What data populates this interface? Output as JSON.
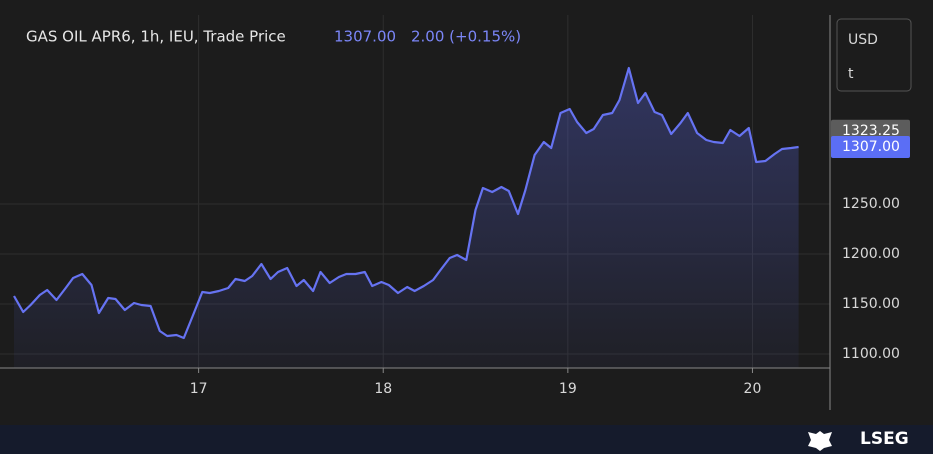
{
  "chart_data": {
    "type": "line",
    "title": "GAS OIL APR6, 1h, IEU, Trade Price",
    "change": "2.00 (+0.15%)",
    "units": [
      "USD",
      "t"
    ],
    "logo": "LSEG",
    "color": "#6673f2",
    "x": [
      16.0,
      16.05,
      16.09,
      16.14,
      16.18,
      16.23,
      16.28,
      16.32,
      16.37,
      16.42,
      16.46,
      16.51,
      16.55,
      16.6,
      16.65,
      16.69,
      16.74,
      16.79,
      16.83,
      16.88,
      16.92,
      16.97,
      17.02,
      17.06,
      17.11,
      17.16,
      17.2,
      17.25,
      17.29,
      17.34,
      17.39,
      17.43,
      17.48,
      17.53,
      17.57,
      17.62,
      17.66,
      17.71,
      17.76,
      17.8,
      17.85,
      17.9,
      17.94,
      17.99,
      18.03,
      18.08,
      18.13,
      18.17,
      18.22,
      18.27,
      18.31,
      18.36,
      18.4,
      18.45,
      18.5,
      18.54,
      18.59,
      18.64,
      18.68,
      18.73,
      18.77,
      18.82,
      18.87,
      18.91,
      18.96,
      19.01,
      19.05,
      19.1,
      19.14,
      19.19,
      19.24,
      19.28,
      19.33,
      19.38,
      19.42,
      19.47,
      19.51,
      19.56,
      19.61,
      19.65,
      19.7,
      19.75,
      19.79,
      19.84,
      19.88,
      19.93,
      19.98,
      20.02,
      20.07,
      20.12,
      20.16,
      20.21,
      20.25
    ],
    "values": [
      1158,
      1142,
      1149,
      1159,
      1164,
      1154,
      1166,
      1176,
      1180,
      1169,
      1141,
      1156,
      1155,
      1144,
      1151,
      1149,
      1148,
      1123,
      1118,
      1119,
      1116,
      1139,
      1162,
      1161,
      1163,
      1166,
      1175,
      1173,
      1178,
      1190,
      1175,
      1182,
      1186,
      1168,
      1174,
      1163,
      1182,
      1171,
      1177,
      1180,
      1180,
      1182,
      1168,
      1172,
      1169,
      1161,
      1167,
      1163,
      1168,
      1174,
      1184,
      1196,
      1199,
      1194,
      1244,
      1266,
      1262,
      1267,
      1263,
      1240,
      1264,
      1299,
      1312,
      1306,
      1341,
      1345,
      1332,
      1321,
      1325,
      1339,
      1341,
      1354,
      1386,
      1351,
      1361,
      1342,
      1339,
      1320,
      1331,
      1341,
      1321,
      1314,
      1312,
      1311,
      1324,
      1318,
      1326,
      1292,
      1293,
      1300,
      1305,
      1306,
      1307
    ],
    "xlim": [
      16.0,
      20.42
    ],
    "xticks": [
      17,
      18,
      19,
      20
    ],
    "ylim": [
      1086,
      1439
    ],
    "yticks": [
      {
        "value": 1100,
        "label": "1100.00"
      },
      {
        "value": 1150,
        "label": "1150.00"
      },
      {
        "value": 1200,
        "label": "1200.00"
      },
      {
        "value": 1250,
        "label": "1250.00"
      }
    ],
    "markers": [
      {
        "value": 1323.25,
        "label": "1323.25",
        "color": "#5c5c5c"
      },
      {
        "value": 1307,
        "label": "1307.00",
        "color": "#5b6ef5"
      }
    ],
    "grid": true
  }
}
